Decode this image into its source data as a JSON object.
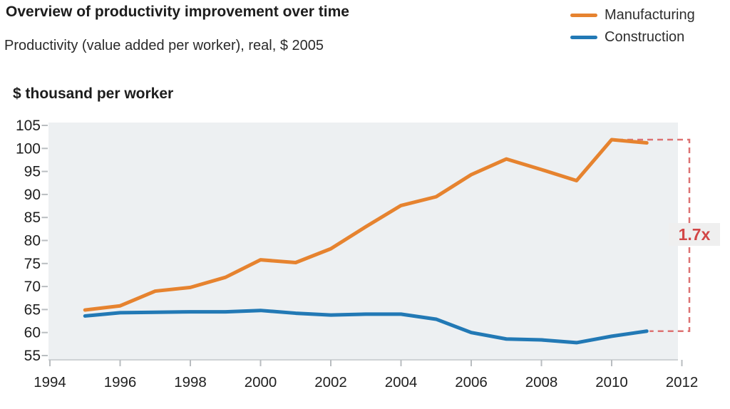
{
  "header": {
    "title": "Overview of productivity improvement over time",
    "subtitle": "Productivity (value added per worker), real, $ 2005"
  },
  "legend": {
    "items": [
      {
        "label": "Manufacturing",
        "color": "#e6832f"
      },
      {
        "label": "Construction",
        "color": "#2279b5"
      }
    ]
  },
  "chart_data": {
    "type": "line",
    "title": "Overview of productivity improvement over time",
    "subtitle": "Productivity (value added per worker), real, $ 2005",
    "ylabel": "$ thousand per worker",
    "xlabel": "",
    "x": [
      1995,
      1996,
      1997,
      1998,
      1999,
      2000,
      2001,
      2002,
      2003,
      2004,
      2005,
      2006,
      2007,
      2008,
      2009,
      2010,
      2011
    ],
    "series": [
      {
        "name": "Manufacturing",
        "color": "#e6832f",
        "values": [
          64.9,
          65.8,
          69.0,
          69.8,
          72.0,
          75.8,
          75.2,
          78.2,
          83.0,
          87.6,
          89.5,
          94.3,
          97.7,
          95.4,
          93.0,
          101.9,
          101.2
        ]
      },
      {
        "name": "Construction",
        "color": "#2279b5",
        "values": [
          63.6,
          64.3,
          64.4,
          64.5,
          64.5,
          64.8,
          64.2,
          63.8,
          64.0,
          64.0,
          62.9,
          60.0,
          58.6,
          58.4,
          57.8,
          59.2,
          60.3
        ]
      }
    ],
    "xticks": [
      1994,
      1996,
      1998,
      2000,
      2002,
      2004,
      2006,
      2008,
      2010,
      2012
    ],
    "yticks": [
      105,
      100,
      95,
      90,
      85,
      80,
      75,
      70,
      65,
      60,
      55
    ],
    "xlim": [
      1994,
      2012
    ],
    "ylim": [
      55,
      105
    ],
    "grid": false,
    "legend_position": "top-right",
    "annotation": {
      "label": "1.7x"
    }
  },
  "colors": {
    "plot_bg": "#edf0f2",
    "axis_line": "#cfd3d5",
    "tick": "#b9bdc0",
    "annotation_dash": "#dd7272",
    "annotation_text": "#d24646",
    "annotation_box": "#efefef"
  }
}
